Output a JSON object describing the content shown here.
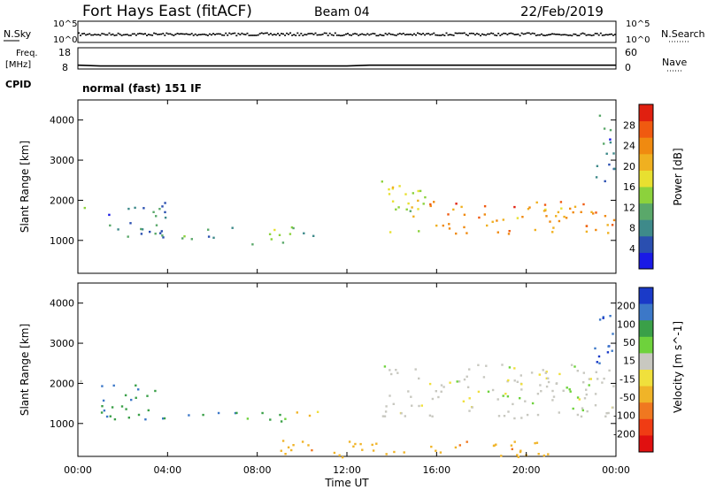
{
  "header": {
    "station": "Fort Hays East (fitACF)",
    "beam": "Beam 04",
    "date": "22/Feb/2019"
  },
  "labels": {
    "nsky": "N.Sky",
    "nsearch": "N.Search",
    "freq_line1": "Freq.",
    "freq_line2": "[MHz]",
    "nave": "Nave",
    "cpid": "CPID",
    "cpid_value": "normal (fast) 151 IF",
    "x_axis": "Time UT"
  },
  "chart_data": [
    {
      "type": "line",
      "name": "noise",
      "left_ticks": [
        "10^5",
        "10^0"
      ],
      "right_ticks": [
        "10^5",
        "10^0"
      ],
      "description_series": [
        "N.Sky",
        "N.Search"
      ]
    },
    {
      "type": "line",
      "name": "frequency",
      "left_ylim": [
        8,
        18
      ],
      "left_ticks": [
        "18",
        "8"
      ],
      "right_ylim": [
        0,
        60
      ],
      "right_ticks": [
        "60",
        "0"
      ],
      "x": [
        0,
        1,
        12,
        13,
        24
      ],
      "freq_mhz": [
        9.8,
        9.4,
        9.4,
        9.8,
        9.8
      ]
    },
    {
      "type": "heatmap",
      "parameter": "Power",
      "ylabel": "Slant Range [km]",
      "ylim": [
        180,
        4500
      ],
      "yticks": [
        1000,
        2000,
        3000,
        4000
      ],
      "colorbar_label": "Power [dB]",
      "colorbar_range": [
        0,
        32
      ],
      "colorbar_ticks": [
        4,
        8,
        12,
        16,
        20,
        24,
        28
      ],
      "colorbar_colors": [
        "#1a1ae6",
        "#2a4fb0",
        "#3e8a8a",
        "#5aa86a",
        "#8cd23c",
        "#e8e030",
        "#f0b020",
        "#f08a10",
        "#f05a10",
        "#e02010"
      ],
      "echo_regions": [
        {
          "t_start": 0.0,
          "t_end": 0.3,
          "range_low": 1700,
          "range_high": 2200,
          "power_db": 14
        },
        {
          "t_start": 1.0,
          "t_end": 4.0,
          "range_low": 1100,
          "range_high": 2000,
          "power_db": 8
        },
        {
          "t_start": 4.5,
          "t_end": 7.2,
          "range_low": 1050,
          "range_high": 1350,
          "power_db": 10
        },
        {
          "t_start": 7.5,
          "t_end": 9.5,
          "range_low": 900,
          "range_high": 1300,
          "power_db": 14
        },
        {
          "t_start": 9.5,
          "t_end": 11.0,
          "range_low": 1100,
          "range_high": 1400,
          "power_db": 12
        },
        {
          "t_start": 13.5,
          "t_end": 15.5,
          "range_low": 1200,
          "range_high": 2500,
          "power_db": 16
        },
        {
          "t_start": 15.5,
          "t_end": 24.0,
          "range_low": 1150,
          "range_high": 2000,
          "power_db": 24
        },
        {
          "t_start": 23.0,
          "t_end": 24.0,
          "range_low": 2500,
          "range_high": 4200,
          "power_db": 8
        }
      ]
    },
    {
      "type": "heatmap",
      "parameter": "Velocity",
      "ylabel": "Slant Range [km]",
      "ylim": [
        180,
        4500
      ],
      "yticks": [
        1000,
        2000,
        3000,
        4000
      ],
      "xlabel": "Time UT",
      "xticks": [
        "00:00",
        "04:00",
        "08:00",
        "12:00",
        "16:00",
        "20:00",
        "00:00"
      ],
      "xlim": [
        0,
        24
      ],
      "colorbar_label": "Velocity [m s^-1]",
      "colorbar_ticks": [
        200,
        100,
        50,
        15,
        -15,
        -50,
        -100,
        -200
      ],
      "colorbar_colors": [
        "#1a3ac8",
        "#3c78c8",
        "#3aa048",
        "#6ed23c",
        "#c8c8c0",
        "#f0e03c",
        "#f0b428",
        "#f07820",
        "#f03c14",
        "#e01010"
      ],
      "echo_regions": [
        {
          "t_start": 0.0,
          "t_end": 0.3,
          "range_low": 1700,
          "range_high": 2200,
          "velocity": 0
        },
        {
          "t_start": 1.0,
          "t_end": 4.0,
          "range_low": 1100,
          "range_high": 2000,
          "velocity": 70
        },
        {
          "t_start": 4.5,
          "t_end": 7.2,
          "range_low": 1150,
          "range_high": 1350,
          "velocity": 70
        },
        {
          "t_start": 7.5,
          "t_end": 9.5,
          "range_low": 950,
          "range_high": 1300,
          "velocity": 40
        },
        {
          "t_start": 9.5,
          "t_end": 11.0,
          "range_low": 1200,
          "range_high": 1400,
          "velocity": -30
        },
        {
          "t_start": 13.5,
          "t_end": 24.0,
          "range_low": 1150,
          "range_high": 2500,
          "velocity": 0
        },
        {
          "t_start": 9.0,
          "t_end": 21.0,
          "range_low": 180,
          "range_high": 600,
          "velocity": -60
        },
        {
          "t_start": 23.0,
          "t_end": 24.0,
          "range_low": 2500,
          "range_high": 4200,
          "velocity": 150
        }
      ]
    }
  ]
}
